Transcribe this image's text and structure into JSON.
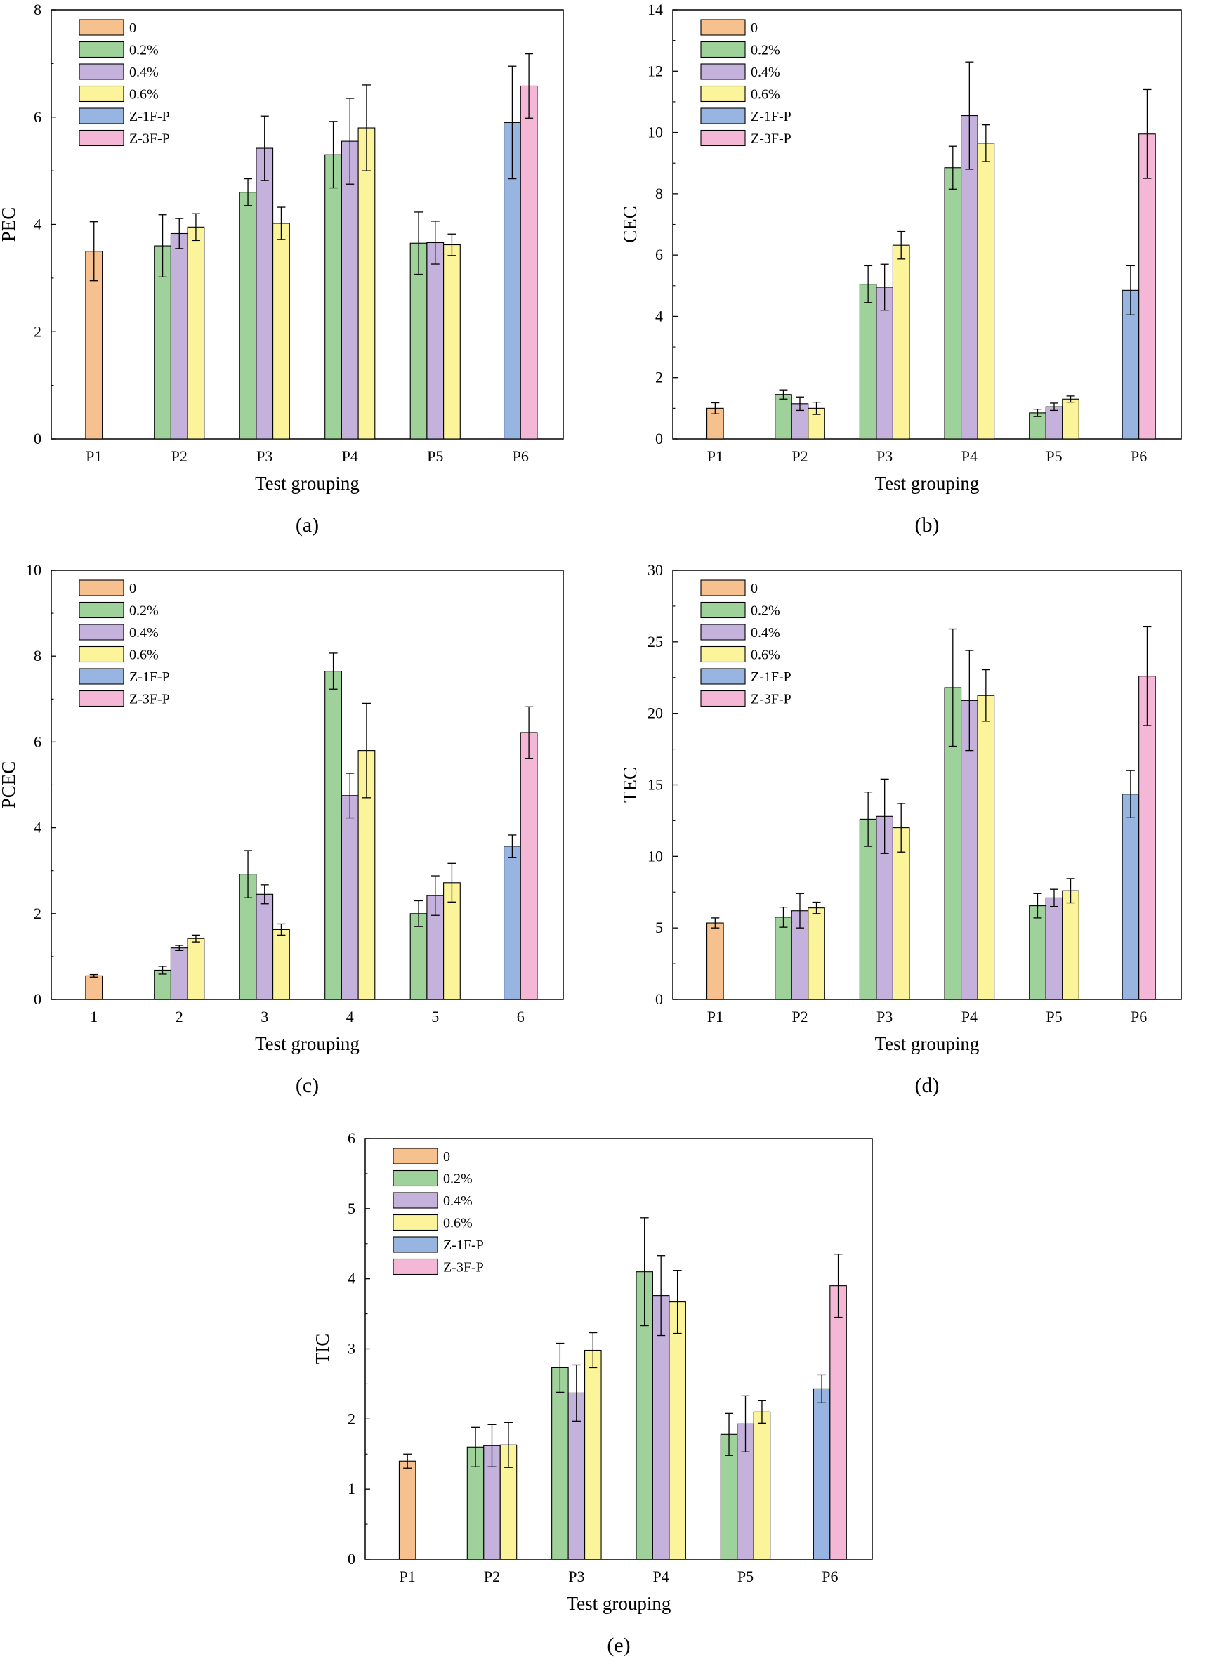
{
  "series_meta": {
    "names": [
      "0",
      "0.2%",
      "0.4%",
      "0.6%",
      "Z-1F-P",
      "Z-3F-P"
    ],
    "colors": [
      "#f7c08f",
      "#9fd19a",
      "#c4b2dc",
      "#fbf49a",
      "#98b4e0",
      "#f4b8d6"
    ]
  },
  "chart_data": [
    {
      "id": "a",
      "type": "bar",
      "caption": "(a)",
      "xlabel": "Test grouping",
      "ylabel": "PEC",
      "categories": [
        "P1",
        "P2",
        "P3",
        "P4",
        "P5",
        "P6"
      ],
      "ylim": [
        0,
        8
      ],
      "yticks": [
        0,
        2,
        4,
        6,
        8
      ],
      "series": [
        {
          "name": "0",
          "values": [
            3.5,
            null,
            null,
            null,
            null,
            null
          ],
          "errors": [
            0.55,
            null,
            null,
            null,
            null,
            null
          ]
        },
        {
          "name": "0.2%",
          "values": [
            null,
            3.6,
            4.6,
            5.3,
            3.65,
            null
          ],
          "errors": [
            null,
            0.58,
            0.25,
            0.62,
            0.58,
            null
          ]
        },
        {
          "name": "0.4%",
          "values": [
            null,
            3.83,
            5.42,
            5.55,
            3.66,
            null
          ],
          "errors": [
            null,
            0.28,
            0.6,
            0.8,
            0.4,
            null
          ]
        },
        {
          "name": "0.6%",
          "values": [
            null,
            3.95,
            4.02,
            5.8,
            3.62,
            null
          ],
          "errors": [
            null,
            0.25,
            0.3,
            0.8,
            0.2,
            null
          ]
        },
        {
          "name": "Z-1F-P",
          "values": [
            null,
            null,
            null,
            null,
            null,
            5.9
          ],
          "errors": [
            null,
            null,
            null,
            null,
            null,
            1.05
          ]
        },
        {
          "name": "Z-3F-P",
          "values": [
            null,
            null,
            null,
            null,
            null,
            6.58
          ],
          "errors": [
            null,
            null,
            null,
            null,
            null,
            0.6
          ]
        }
      ]
    },
    {
      "id": "b",
      "type": "bar",
      "caption": "(b)",
      "xlabel": "Test grouping",
      "ylabel": "CEC",
      "categories": [
        "P1",
        "P2",
        "P3",
        "P4",
        "P5",
        "P6"
      ],
      "ylim": [
        0,
        14
      ],
      "yticks": [
        0,
        2,
        4,
        6,
        8,
        10,
        12,
        14
      ],
      "series": [
        {
          "name": "0",
          "values": [
            1.0,
            null,
            null,
            null,
            null,
            null
          ],
          "errors": [
            0.18,
            null,
            null,
            null,
            null,
            null
          ]
        },
        {
          "name": "0.2%",
          "values": [
            null,
            1.45,
            5.05,
            8.85,
            0.85,
            null
          ],
          "errors": [
            null,
            0.15,
            0.6,
            0.7,
            0.12,
            null
          ]
        },
        {
          "name": "0.4%",
          "values": [
            null,
            1.15,
            4.95,
            10.55,
            1.05,
            null
          ],
          "errors": [
            null,
            0.22,
            0.75,
            1.75,
            0.12,
            null
          ]
        },
        {
          "name": "0.6%",
          "values": [
            null,
            1.0,
            6.32,
            9.65,
            1.3,
            null
          ],
          "errors": [
            null,
            0.2,
            0.45,
            0.6,
            0.1,
            null
          ]
        },
        {
          "name": "Z-1F-P",
          "values": [
            null,
            null,
            null,
            null,
            null,
            4.85
          ],
          "errors": [
            null,
            null,
            null,
            null,
            null,
            0.8
          ]
        },
        {
          "name": "Z-3F-P",
          "values": [
            null,
            null,
            null,
            null,
            null,
            9.95
          ],
          "errors": [
            null,
            null,
            null,
            null,
            null,
            1.45
          ]
        }
      ]
    },
    {
      "id": "c",
      "type": "bar",
      "caption": "(c)",
      "xlabel": "Test grouping",
      "ylabel": "PCEC",
      "categories": [
        "1",
        "2",
        "3",
        "4",
        "5",
        "6"
      ],
      "ylim": [
        0,
        10
      ],
      "yticks": [
        0,
        2,
        4,
        6,
        8,
        10
      ],
      "series": [
        {
          "name": "0",
          "values": [
            0.55,
            null,
            null,
            null,
            null,
            null
          ],
          "errors": [
            0.03,
            null,
            null,
            null,
            null,
            null
          ]
        },
        {
          "name": "0.2%",
          "values": [
            null,
            0.68,
            2.92,
            7.65,
            2.0,
            null
          ],
          "errors": [
            null,
            0.09,
            0.55,
            0.42,
            0.3,
            null
          ]
        },
        {
          "name": "0.4%",
          "values": [
            null,
            1.2,
            2.45,
            4.75,
            2.42,
            null
          ],
          "errors": [
            null,
            0.06,
            0.22,
            0.52,
            0.46,
            null
          ]
        },
        {
          "name": "0.6%",
          "values": [
            null,
            1.42,
            1.63,
            5.8,
            2.72,
            null
          ],
          "errors": [
            null,
            0.08,
            0.13,
            1.1,
            0.45,
            null
          ]
        },
        {
          "name": "Z-1F-P",
          "values": [
            null,
            null,
            null,
            null,
            null,
            3.57
          ],
          "errors": [
            null,
            null,
            null,
            null,
            null,
            0.26
          ]
        },
        {
          "name": "Z-3F-P",
          "values": [
            null,
            null,
            null,
            null,
            null,
            6.22
          ],
          "errors": [
            null,
            null,
            null,
            null,
            null,
            0.6
          ]
        }
      ]
    },
    {
      "id": "d",
      "type": "bar",
      "caption": "(d)",
      "xlabel": "Test grouping",
      "ylabel": "TEC",
      "categories": [
        "P1",
        "P2",
        "P3",
        "P4",
        "P5",
        "P6"
      ],
      "ylim": [
        0,
        30
      ],
      "yticks": [
        0,
        5,
        10,
        15,
        20,
        25,
        30
      ],
      "series": [
        {
          "name": "0",
          "values": [
            5.35,
            null,
            null,
            null,
            null,
            null
          ],
          "errors": [
            0.35,
            null,
            null,
            null,
            null,
            null
          ]
        },
        {
          "name": "0.2%",
          "values": [
            null,
            5.75,
            12.6,
            21.8,
            6.55,
            null
          ],
          "errors": [
            null,
            0.7,
            1.9,
            4.1,
            0.85,
            null
          ]
        },
        {
          "name": "0.4%",
          "values": [
            null,
            6.2,
            12.8,
            20.9,
            7.1,
            null
          ],
          "errors": [
            null,
            1.2,
            2.6,
            3.5,
            0.6,
            null
          ]
        },
        {
          "name": "0.6%",
          "values": [
            null,
            6.4,
            12.0,
            21.25,
            7.6,
            null
          ],
          "errors": [
            null,
            0.4,
            1.7,
            1.8,
            0.85,
            null
          ]
        },
        {
          "name": "Z-1F-P",
          "values": [
            null,
            null,
            null,
            null,
            null,
            14.35
          ],
          "errors": [
            null,
            null,
            null,
            null,
            null,
            1.65
          ]
        },
        {
          "name": "Z-3F-P",
          "values": [
            null,
            null,
            null,
            null,
            null,
            22.6
          ],
          "errors": [
            null,
            null,
            null,
            null,
            null,
            3.45
          ]
        }
      ]
    },
    {
      "id": "e",
      "type": "bar",
      "caption": "(e)",
      "xlabel": "Test grouping",
      "ylabel": "TIC",
      "categories": [
        "P1",
        "P2",
        "P3",
        "P4",
        "P5",
        "P6"
      ],
      "ylim": [
        0,
        6
      ],
      "yticks": [
        0,
        1,
        2,
        3,
        4,
        5,
        6
      ],
      "series": [
        {
          "name": "0",
          "values": [
            1.4,
            null,
            null,
            null,
            null,
            null
          ],
          "errors": [
            0.1,
            null,
            null,
            null,
            null,
            null
          ]
        },
        {
          "name": "0.2%",
          "values": [
            null,
            1.6,
            2.73,
            4.1,
            1.78,
            null
          ],
          "errors": [
            null,
            0.28,
            0.35,
            0.77,
            0.3,
            null
          ]
        },
        {
          "name": "0.4%",
          "values": [
            null,
            1.62,
            2.37,
            3.76,
            1.93,
            null
          ],
          "errors": [
            null,
            0.3,
            0.4,
            0.57,
            0.4,
            null
          ]
        },
        {
          "name": "0.6%",
          "values": [
            null,
            1.63,
            2.98,
            3.67,
            2.1,
            null
          ],
          "errors": [
            null,
            0.32,
            0.25,
            0.45,
            0.16,
            null
          ]
        },
        {
          "name": "Z-1F-P",
          "values": [
            null,
            null,
            null,
            null,
            null,
            2.43
          ],
          "errors": [
            null,
            null,
            null,
            null,
            null,
            0.2
          ]
        },
        {
          "name": "Z-3F-P",
          "values": [
            null,
            null,
            null,
            null,
            null,
            3.9
          ],
          "errors": [
            null,
            null,
            null,
            null,
            null,
            0.45
          ]
        }
      ]
    }
  ]
}
